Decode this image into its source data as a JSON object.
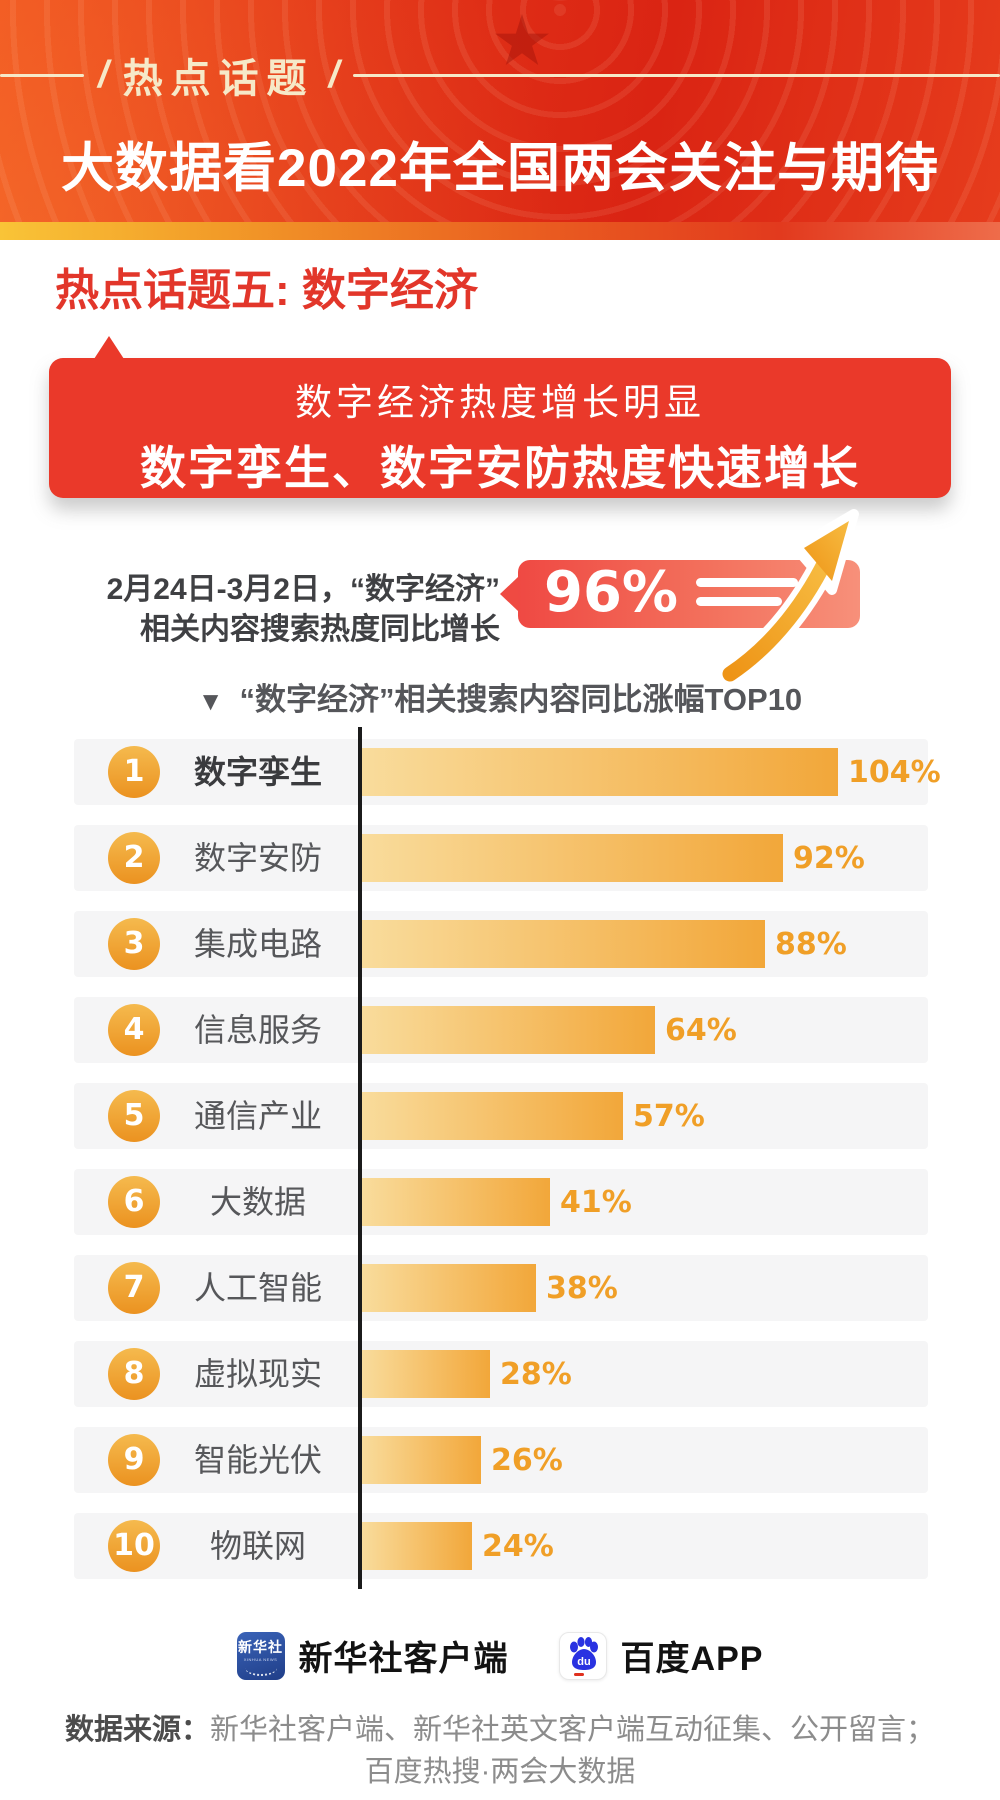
{
  "header": {
    "badge": "热点话题",
    "slash": "/",
    "title": "大数据看2022年全国两会关注与期待"
  },
  "section": {
    "heading": "热点话题五: 数字经济"
  },
  "callout": {
    "line1": "数字经济热度增长明显",
    "line2": "数字孪生、数字安防热度快速增长"
  },
  "stat": {
    "desc_line1": "2月24日-3月2日，“数字经济”",
    "desc_line2": "相关内容搜索热度同比增长",
    "value": "96%"
  },
  "chart_title": {
    "marker": "▼",
    "text": "“数字经济”相关搜索内容同比涨幅TOP10"
  },
  "chart_data": {
    "type": "bar",
    "orientation": "horizontal",
    "title": "“数字经济”相关搜索内容同比涨幅TOP10",
    "unit": "%",
    "ranks": [
      1,
      2,
      3,
      4,
      5,
      6,
      7,
      8,
      9,
      10
    ],
    "categories": [
      "数字孪生",
      "数字安防",
      "集成电路",
      "信息服务",
      "通信产业",
      "大数据",
      "人工智能",
      "虚拟现实",
      "智能光伏",
      "物联网"
    ],
    "values": [
      104,
      92,
      88,
      64,
      57,
      41,
      38,
      28,
      26,
      24
    ],
    "xlim": [
      0,
      110
    ],
    "highlight_first": true,
    "legend_position": "none",
    "grid": false
  },
  "footer": {
    "xinhua_logo_zh": "新华社",
    "xinhua_logo_en": "XINHUA NEWS",
    "xinhua_label": "新华社客户端",
    "baidu_label": "百度APP",
    "baidu_logo_text": "du"
  },
  "source": {
    "label": "数据来源：",
    "line1": "新华社客户端、新华社英文客户端互动征集、公开留言；",
    "line2": "百度热搜·两会大数据"
  },
  "colors": {
    "header_red": "#e23318",
    "gold_strip": "#f9c437",
    "heading_red": "#e2362a",
    "callout_red": "#ea392a",
    "stat_badge_red": "#ef4943",
    "arrow_gold": "#f2a129",
    "bar_gradient_start": "#f9dc9c",
    "bar_gradient_end": "#f2a73a",
    "percent_orange": "#f09f27",
    "rank_orange": "#efa22c",
    "row_bg": "#f5f5f6",
    "axis_black": "#1b1b1b",
    "badge_cream": "#f6e9c8",
    "xinhua_blue": "#2b4da0",
    "baidu_blue": "#2932e1"
  }
}
